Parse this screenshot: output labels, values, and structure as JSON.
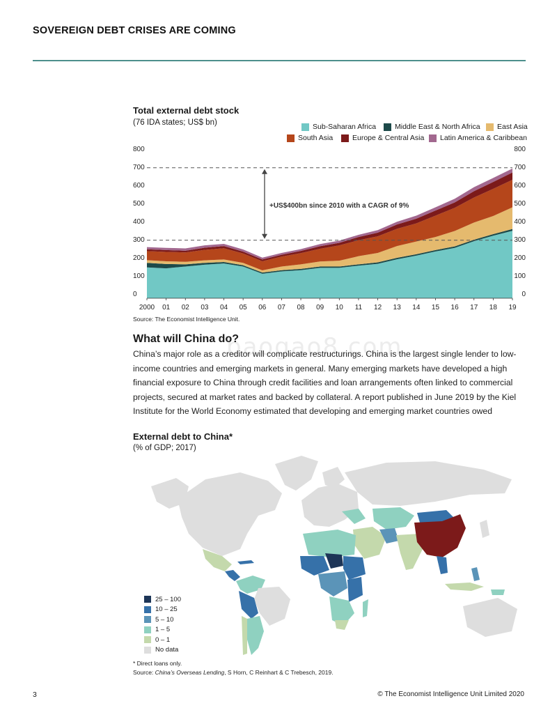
{
  "header": {
    "title": "SOVEREIGN DEBT CRISES ARE COMING"
  },
  "chart": {
    "title": "Total external debt stock",
    "subtitle": "(76 IDA states; US$ bn)",
    "annotation": "+US$400bn since 2010 with a CAGR of 9%",
    "source": "Source: The Economist Intelligence Unit."
  },
  "chart_data": {
    "type": "area",
    "stacked": true,
    "title": "Total external debt stock",
    "subtitle": "(76 IDA states; US$ bn)",
    "categories": [
      "2000",
      "01",
      "02",
      "03",
      "04",
      "05",
      "06",
      "07",
      "08",
      "09",
      "10",
      "11",
      "12",
      "13",
      "14",
      "15",
      "16",
      "17",
      "18",
      "19"
    ],
    "ylim": [
      0,
      800
    ],
    "yticks": [
      0,
      100,
      200,
      300,
      400,
      500,
      600,
      700,
      800
    ],
    "grid": false,
    "legend_position": "top-right",
    "series": [
      {
        "name": "Sub-Saharan Africa",
        "color": "#71c8c5",
        "values": [
          170,
          165,
          175,
          185,
          192,
          175,
          135,
          148,
          155,
          168,
          168,
          180,
          190,
          215,
          235,
          258,
          278,
          315,
          345,
          372
        ]
      },
      {
        "name": "Middle East & North Africa",
        "color": "#1d4a4a",
        "values": [
          25,
          24,
          12,
          10,
          8,
          7,
          7,
          7,
          7,
          7,
          7,
          7,
          8,
          8,
          8,
          8,
          8,
          8,
          9,
          10
        ]
      },
      {
        "name": "East Asia",
        "color": "#e5ba6e",
        "values": [
          15,
          15,
          14,
          14,
          14,
          13,
          12,
          20,
          25,
          28,
          32,
          45,
          52,
          65,
          70,
          72,
          85,
          95,
          100,
          120
        ]
      },
      {
        "name": "South Asia",
        "color": "#b5461b",
        "values": [
          50,
          52,
          52,
          58,
          62,
          52,
          50,
          55,
          62,
          70,
          85,
          88,
          92,
          95,
          100,
          118,
          128,
          138,
          150,
          152
        ]
      },
      {
        "name": "Europe & Central Asia",
        "color": "#7c1a1a",
        "values": [
          10,
          10,
          9,
          12,
          12,
          10,
          10,
          10,
          12,
          14,
          14,
          18,
          20,
          24,
          26,
          28,
          30,
          35,
          38,
          40
        ]
      },
      {
        "name": "Latin America & Caribbean",
        "color": "#a2688f",
        "values": [
          12,
          12,
          13,
          13,
          12,
          12,
          10,
          10,
          10,
          12,
          12,
          12,
          14,
          15,
          17,
          18,
          20,
          22,
          22,
          22
        ]
      }
    ],
    "annotations": [
      {
        "text": "+US$400bn since 2010 with a CAGR of 9%",
        "from_value": 320,
        "to_value": 720
      }
    ]
  },
  "section": {
    "heading": "What will China do?",
    "body": "China’s major role as a creditor will complicate restructurings. China is the largest single lender to low-income countries and emerging markets in general. Many emerging markets have developed a high financial exposure to China through credit facilities and loan arrangements often linked to commercial projects, secured at market rates and backed by collateral. A report published in June 2019 by the Kiel Institute for the World Economy estimated that developing and emerging market countries owed",
    "watermark": "baogao8.com"
  },
  "map": {
    "title": "External debt to China*",
    "subtitle": "(% of GDP; 2017)",
    "legend": [
      {
        "label": "25 – 100",
        "color": "#1d3557"
      },
      {
        "label": "10 – 25",
        "color": "#3671a9"
      },
      {
        "label": "5 – 10",
        "color": "#5b94b8"
      },
      {
        "label": "1 – 5",
        "color": "#8fd1c0"
      },
      {
        "label": "0 – 1",
        "color": "#c4d9ac"
      },
      {
        "label": "No data",
        "color": "#dedede"
      }
    ],
    "footnote": "* Direct loans only.",
    "source_prefix": "Source: ",
    "source_title": "China’s Overseas Lending",
    "source_suffix": ", S Horn, C Reinhart & C Trebesch, 2019."
  },
  "footer": {
    "page_number": "3",
    "copyright": "© The Economist Intelligence Unit Limited 2020"
  }
}
